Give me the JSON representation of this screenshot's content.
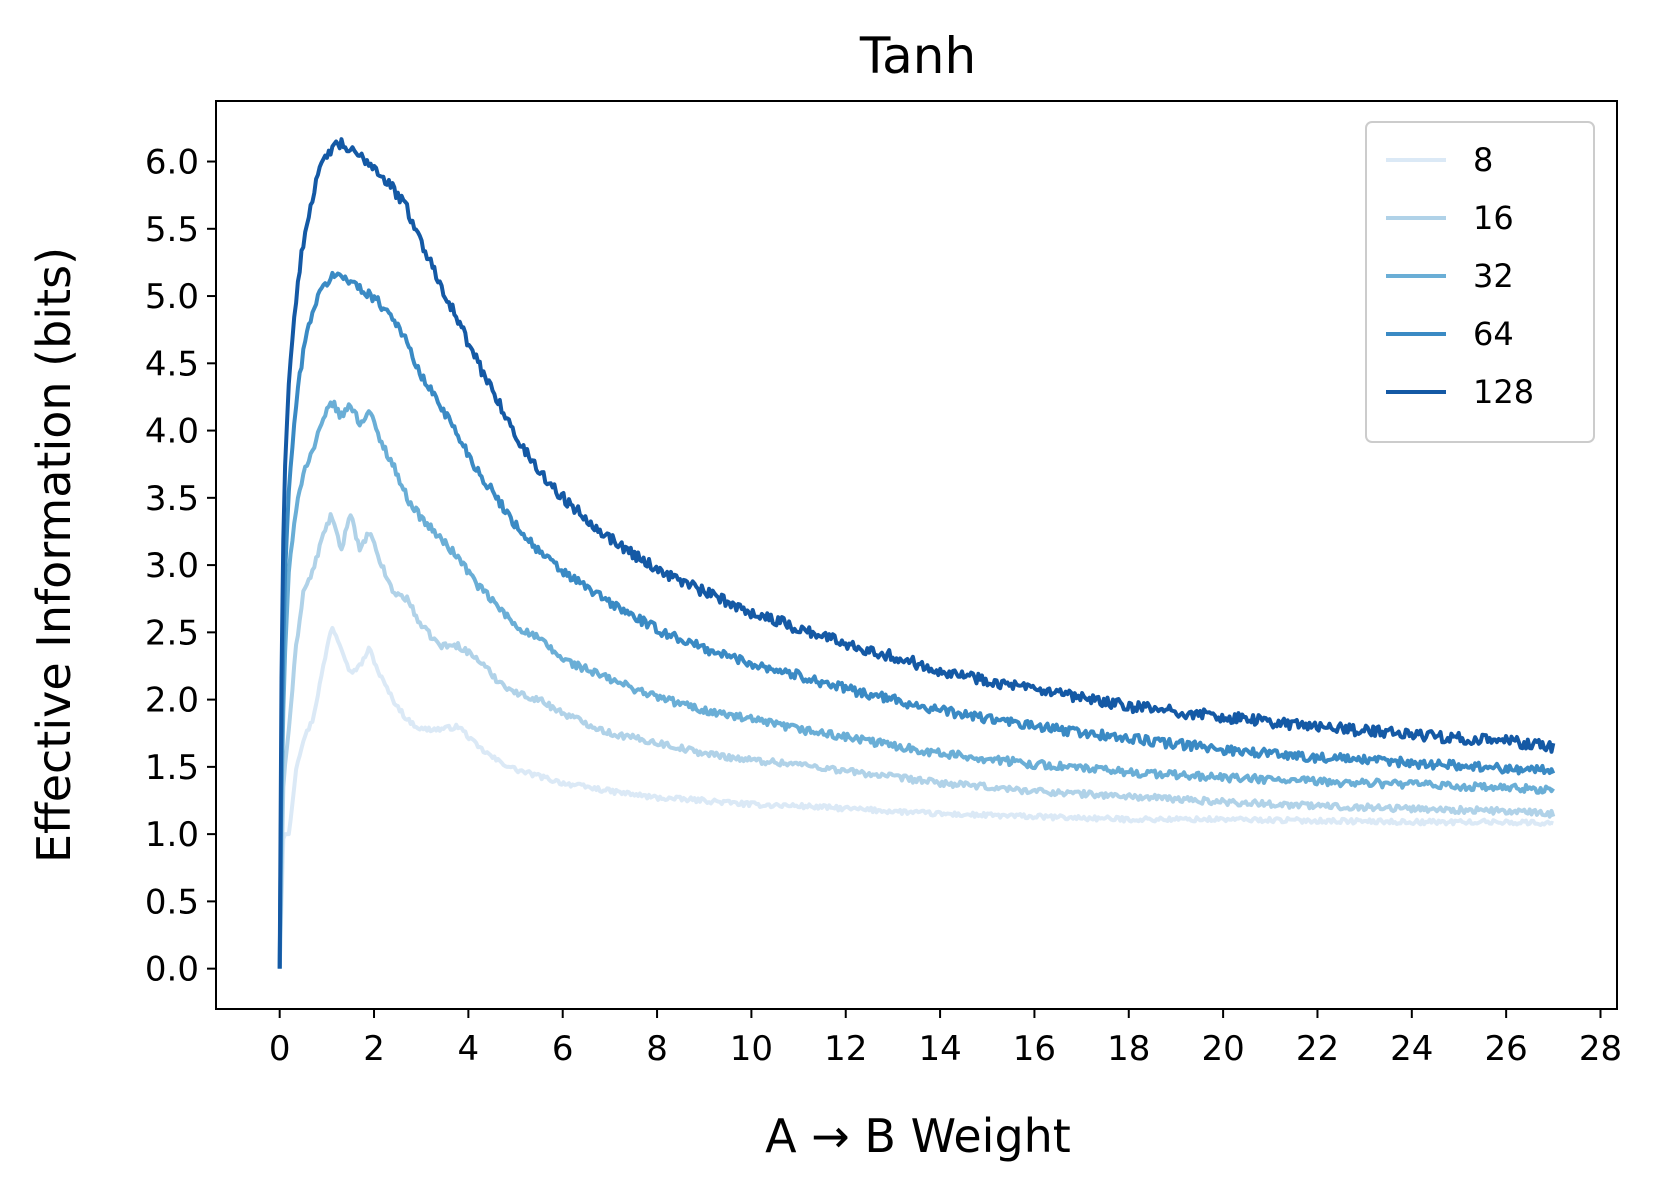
{
  "chart_data": {
    "type": "line",
    "title": "Tanh",
    "xlabel": "A → B Weight",
    "ylabel": "Effective Information (bits)",
    "xlim": [
      -1.35,
      28.35
    ],
    "ylim": [
      -0.3,
      6.45
    ],
    "xticks": [
      "0",
      "2",
      "4",
      "6",
      "8",
      "10",
      "12",
      "14",
      "16",
      "18",
      "20",
      "22",
      "24",
      "26",
      "28"
    ],
    "yticks": [
      "0.0",
      "0.5",
      "1.0",
      "1.5",
      "2.0",
      "2.5",
      "3.0",
      "3.5",
      "4.0",
      "4.5",
      "5.0",
      "5.5",
      "6.0"
    ],
    "grid": false,
    "legend_position": "top-right",
    "series": [
      {
        "name": "8",
        "color": "#dbe9f6",
        "x": [
          0,
          0.08,
          0.2,
          0.35,
          0.5,
          0.7,
          0.9,
          1.1,
          1.3,
          1.5,
          1.7,
          1.9,
          2.1,
          2.4,
          2.7,
          3.0,
          3.4,
          3.8,
          4.2,
          4.6,
          5.0,
          5.5,
          6.0,
          7.0,
          8.0,
          9.0,
          10.0,
          11.0,
          12.0,
          14.0,
          16.0,
          18.0,
          20.0,
          22.0,
          24.0,
          26.0,
          27.0
        ],
        "y": [
          0.0,
          1.0,
          1.0,
          1.5,
          1.7,
          1.85,
          2.2,
          2.55,
          2.4,
          2.2,
          2.25,
          2.38,
          2.2,
          2.0,
          1.85,
          1.78,
          1.78,
          1.8,
          1.65,
          1.55,
          1.48,
          1.43,
          1.38,
          1.32,
          1.27,
          1.25,
          1.22,
          1.21,
          1.19,
          1.15,
          1.13,
          1.11,
          1.11,
          1.1,
          1.09,
          1.09,
          1.08
        ]
      },
      {
        "name": "16",
        "color": "#b0d2e8",
        "x": [
          0,
          0.08,
          0.2,
          0.35,
          0.5,
          0.7,
          0.9,
          1.1,
          1.3,
          1.5,
          1.7,
          1.9,
          2.1,
          2.4,
          2.7,
          3.0,
          3.4,
          3.8,
          4.2,
          4.6,
          5.0,
          5.5,
          6.0,
          7.0,
          8.0,
          9.0,
          10.0,
          11.0,
          12.0,
          14.0,
          16.0,
          18.0,
          20.0,
          22.0,
          24.0,
          26.0,
          27.0
        ],
        "y": [
          0.0,
          1.4,
          1.8,
          2.4,
          2.8,
          2.95,
          3.2,
          3.38,
          3.1,
          3.4,
          3.1,
          3.25,
          3.05,
          2.8,
          2.75,
          2.55,
          2.4,
          2.4,
          2.3,
          2.15,
          2.05,
          2.0,
          1.9,
          1.75,
          1.68,
          1.6,
          1.55,
          1.52,
          1.47,
          1.38,
          1.32,
          1.28,
          1.24,
          1.21,
          1.19,
          1.17,
          1.15
        ]
      },
      {
        "name": "32",
        "color": "#6aaed6",
        "x": [
          0,
          0.05,
          0.12,
          0.2,
          0.35,
          0.5,
          0.7,
          0.9,
          1.1,
          1.3,
          1.5,
          1.7,
          1.9,
          2.1,
          2.4,
          2.7,
          3.0,
          3.4,
          3.8,
          4.2,
          4.6,
          5.0,
          5.5,
          6.0,
          7.0,
          8.0,
          9.0,
          10.0,
          11.0,
          12.0,
          14.0,
          16.0,
          18.0,
          20.0,
          22.0,
          24.0,
          26.0,
          27.0
        ],
        "y": [
          0.0,
          1.6,
          2.4,
          3.0,
          3.4,
          3.7,
          3.85,
          4.05,
          4.22,
          4.1,
          4.2,
          4.05,
          4.15,
          3.95,
          3.75,
          3.5,
          3.35,
          3.2,
          3.05,
          2.85,
          2.7,
          2.55,
          2.45,
          2.3,
          2.15,
          2.02,
          1.92,
          1.85,
          1.78,
          1.72,
          1.6,
          1.52,
          1.46,
          1.42,
          1.39,
          1.37,
          1.34,
          1.33
        ]
      },
      {
        "name": "64",
        "color": "#3a8ac4",
        "x": [
          0,
          0.05,
          0.12,
          0.2,
          0.35,
          0.5,
          0.7,
          0.9,
          1.1,
          1.3,
          1.5,
          1.7,
          1.9,
          2.1,
          2.4,
          2.7,
          3.0,
          3.4,
          3.8,
          4.2,
          4.6,
          5.0,
          5.5,
          6.0,
          7.0,
          8.0,
          9.0,
          10.0,
          11.0,
          12.0,
          14.0,
          16.0,
          18.0,
          20.0,
          22.0,
          24.0,
          26.0,
          27.0
        ],
        "y": [
          0.0,
          2.0,
          3.0,
          3.6,
          4.2,
          4.6,
          4.9,
          5.05,
          5.15,
          5.15,
          5.12,
          5.05,
          5.02,
          4.95,
          4.85,
          4.65,
          4.4,
          4.2,
          3.95,
          3.7,
          3.5,
          3.3,
          3.1,
          2.95,
          2.72,
          2.52,
          2.38,
          2.27,
          2.18,
          2.08,
          1.92,
          1.8,
          1.71,
          1.63,
          1.57,
          1.53,
          1.49,
          1.47
        ]
      },
      {
        "name": "128",
        "color": "#1459a5",
        "x": [
          0,
          0.05,
          0.12,
          0.2,
          0.35,
          0.5,
          0.7,
          0.9,
          1.1,
          1.3,
          1.5,
          1.7,
          1.9,
          2.1,
          2.4,
          2.7,
          3.0,
          3.4,
          3.8,
          4.2,
          4.6,
          5.0,
          5.5,
          6.0,
          7.0,
          8.0,
          9.0,
          10.0,
          11.0,
          12.0,
          14.0,
          16.0,
          18.0,
          20.0,
          22.0,
          24.0,
          26.0,
          27.0
        ],
        "y": [
          0.0,
          2.8,
          3.8,
          4.4,
          5.0,
          5.4,
          5.75,
          5.98,
          6.1,
          6.13,
          6.08,
          6.03,
          6.0,
          5.92,
          5.8,
          5.65,
          5.4,
          5.1,
          4.8,
          4.5,
          4.25,
          3.95,
          3.7,
          3.5,
          3.2,
          2.97,
          2.8,
          2.65,
          2.53,
          2.42,
          2.22,
          2.07,
          1.95,
          1.87,
          1.8,
          1.74,
          1.69,
          1.65
        ]
      }
    ]
  }
}
